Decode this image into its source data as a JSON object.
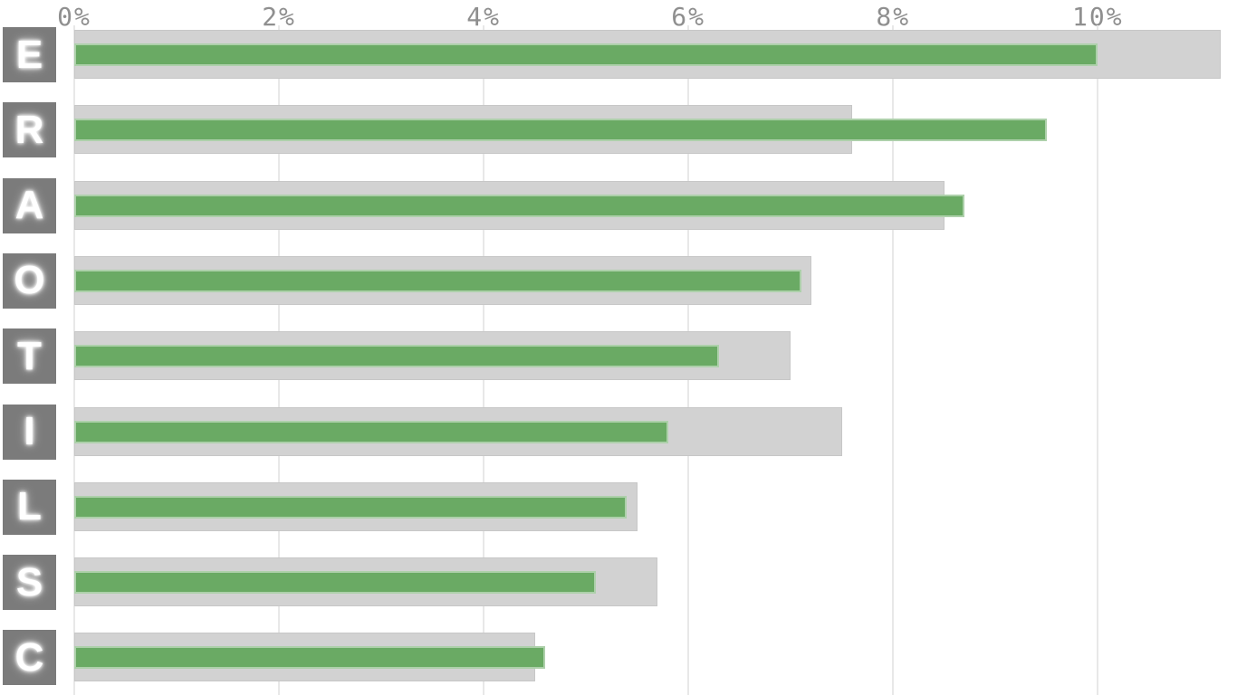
{
  "style": {
    "background": "#ffffff",
    "grid_line": "#e8e8e8",
    "axis_text_color": "#8f8f8f",
    "bar_gray": "#d2d2d2",
    "bar_green": "#6aaa64",
    "tile_background": "#7b7b7b",
    "tile_letter_color": "#ffffff"
  },
  "chart_data": {
    "type": "bar",
    "orientation": "horizontal",
    "axis_position": "top",
    "grid": "vertical",
    "categories": [
      "E",
      "R",
      "A",
      "O",
      "T",
      "I",
      "L",
      "S",
      "C"
    ],
    "series": [
      {
        "name": "gray-baseline-bar",
        "color": "#d2d2d2",
        "values": [
          11.2,
          7.6,
          8.5,
          7.2,
          7.0,
          7.5,
          5.5,
          5.7,
          4.5
        ]
      },
      {
        "name": "green-highlight-bar",
        "color": "#6aaa64",
        "values": [
          10.0,
          9.5,
          8.7,
          7.1,
          6.3,
          5.8,
          5.4,
          5.1,
          4.6
        ]
      }
    ],
    "x_ticks": [
      {
        "label": "0%",
        "value": 0
      },
      {
        "label": "2%",
        "value": 2
      },
      {
        "label": "4%",
        "value": 4
      },
      {
        "label": "6%",
        "value": 6
      },
      {
        "label": "8%",
        "value": 8
      },
      {
        "label": "10%",
        "value": 10
      }
    ],
    "xlim": [
      0,
      11.36
    ],
    "x_unit": "%"
  }
}
